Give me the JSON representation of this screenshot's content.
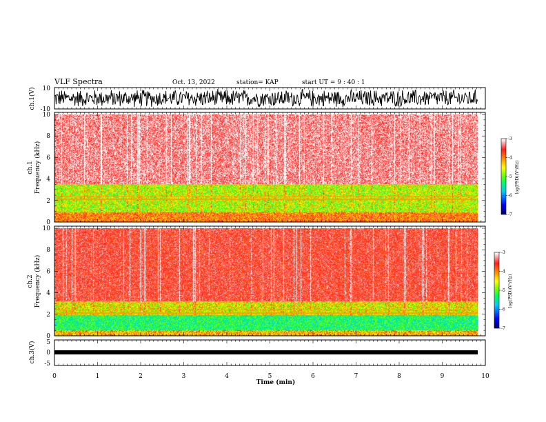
{
  "header": {
    "title": "VLF Spectra",
    "date": "Oct. 13, 2022",
    "station": "station= KAP",
    "start": "start  UT =  9 : 40 : 1"
  },
  "chart_data": [
    {
      "type": "line",
      "panel": "ch1-waveform",
      "ylabel": "ch.1(V)",
      "ylim": [
        -10,
        10
      ],
      "yticks": [
        "10",
        "-10"
      ],
      "x_range_min": [
        0,
        9.83
      ],
      "description_values": "dense noise waveform oscillating roughly between -9 and +9 V"
    },
    {
      "type": "heatmap",
      "panel": "ch1-spectrogram",
      "ylabel": "ch.1 Frequency (kHz)",
      "ylim": [
        0,
        10
      ],
      "yticks": [
        "0",
        "2",
        "4",
        "6",
        "8",
        "10"
      ],
      "x_range_min": [
        0,
        9.83
      ],
      "colorbar": {
        "label": "log(PSD)(V²/Hz)",
        "range": [
          -7,
          -3
        ],
        "ticks": [
          "-3",
          "-4",
          "-5",
          "-6",
          "-7"
        ]
      }
    },
    {
      "type": "heatmap",
      "panel": "ch2-spectrogram",
      "ylabel": "ch.2 Frequency (kHz)",
      "ylim": [
        0,
        10
      ],
      "yticks": [
        "0",
        "2",
        "4",
        "6",
        "8",
        "10"
      ],
      "x_range_min": [
        0,
        9.83
      ],
      "colorbar": {
        "label": "log(PSD)(V²/Hz)",
        "range": [
          -7,
          -3
        ],
        "ticks": [
          "-3",
          "-4",
          "-5",
          "-6",
          "-7"
        ]
      }
    },
    {
      "type": "line",
      "panel": "ch3-waveform",
      "ylabel": "ch.3(V)",
      "ylim": [
        -5,
        5
      ],
      "yticks": [
        "5",
        "0",
        "-5"
      ],
      "x_range_min": [
        0,
        9.83
      ],
      "description_values": "flat band near -0.5 V"
    }
  ],
  "axes": {
    "xlabel": "Time  (min)",
    "xticks": [
      "0",
      "1",
      "2",
      "3",
      "4",
      "5",
      "6",
      "7",
      "8",
      "9",
      "10"
    ],
    "xlim": [
      0,
      10
    ]
  },
  "labels": {
    "ch1_wave": "ch.1(V)",
    "ch1_freq_a": "ch.1",
    "ch1_freq_b": "Frequency  (kHz)",
    "ch2_freq_a": "ch.2",
    "ch2_freq_b": "Frequency  (kHz)",
    "ch3_wave": "ch.3(V)",
    "colorbar": "log(PSD)(V²/Hz)"
  },
  "colors": {
    "waveform": "#000000",
    "cmap": [
      "#000080",
      "#0000ff",
      "#00c0ff",
      "#00ff80",
      "#80ff00",
      "#ffff00",
      "#ff8000",
      "#ff2020",
      "#ffffff"
    ]
  }
}
